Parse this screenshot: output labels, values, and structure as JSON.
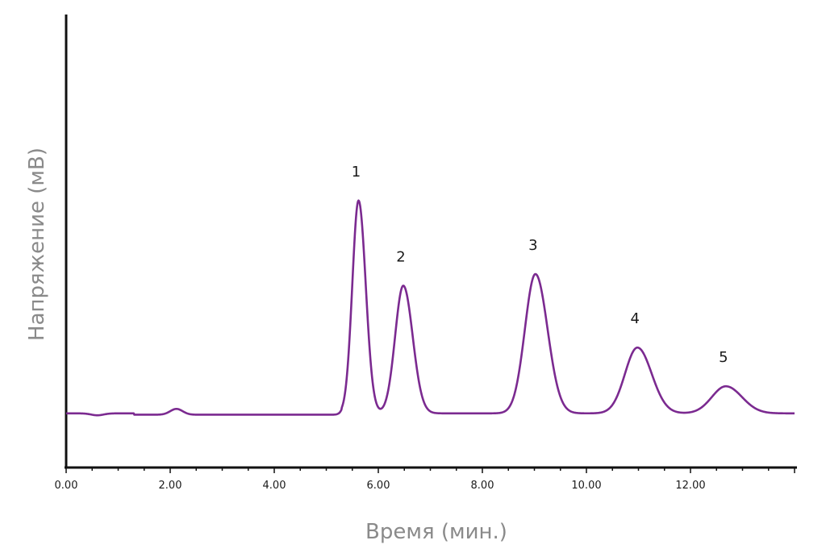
{
  "chart_data": {
    "type": "line",
    "title": "",
    "xlabel": "Время (мин.)",
    "ylabel": "Напряжение (мВ)",
    "xlim": [
      0,
      14
    ],
    "ylim": [
      0,
      100
    ],
    "x_ticks": [
      0,
      2,
      4,
      6,
      8,
      10,
      12
    ],
    "x_tick_labels": [
      "0.00",
      "2.00",
      "4.00",
      "6.00",
      "8.00",
      "10.00",
      "12.00"
    ],
    "grid": false,
    "legend": "none",
    "series": [
      {
        "color": "#7b2a90",
        "baseline": 14,
        "peaks": [
          {
            "label": "1",
            "x": 5.62,
            "y": 69
          },
          {
            "label": "2",
            "x": 6.48,
            "y": 47
          },
          {
            "label": "3",
            "x": 9.02,
            "y": 50
          },
          {
            "label": "4",
            "x": 10.98,
            "y": 31
          },
          {
            "label": "5",
            "x": 12.68,
            "y": 21
          }
        ],
        "minor_bumps": [
          {
            "x": 0.6,
            "y": 13.5
          },
          {
            "x": 2.12,
            "y": 15.5
          }
        ]
      }
    ]
  }
}
